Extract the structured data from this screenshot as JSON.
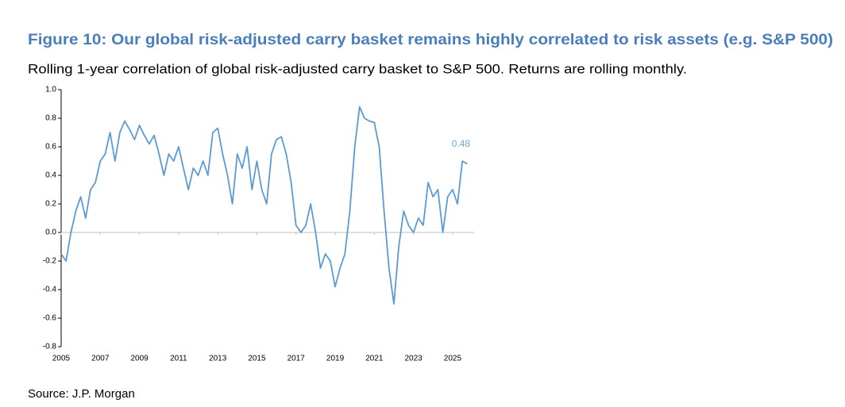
{
  "chart_data": {
    "type": "line",
    "title": "Figure 10: Our global risk-adjusted carry basket remains highly correlated to risk assets (e.g. S&P 500)",
    "subtitle": "Rolling 1-year correlation of global risk-adjusted carry basket to S&P 500. Returns are rolling monthly.",
    "source": "Source: J.P. Morgan",
    "x": [
      2005.0,
      2005.25,
      2005.5,
      2005.75,
      2006.0,
      2006.25,
      2006.5,
      2006.75,
      2007.0,
      2007.25,
      2007.5,
      2007.75,
      2008.0,
      2008.25,
      2008.5,
      2008.75,
      2009.0,
      2009.25,
      2009.5,
      2009.75,
      2010.0,
      2010.25,
      2010.5,
      2010.75,
      2011.0,
      2011.25,
      2011.5,
      2011.75,
      2012.0,
      2012.25,
      2012.5,
      2012.75,
      2013.0,
      2013.25,
      2013.5,
      2013.75,
      2014.0,
      2014.25,
      2014.5,
      2014.75,
      2015.0,
      2015.25,
      2015.5,
      2015.75,
      2016.0,
      2016.25,
      2016.5,
      2016.75,
      2017.0,
      2017.25,
      2017.5,
      2017.75,
      2018.0,
      2018.25,
      2018.5,
      2018.75,
      2019.0,
      2019.25,
      2019.5,
      2019.75,
      2020.0,
      2020.25,
      2020.5,
      2020.75,
      2021.0,
      2021.25,
      2021.5,
      2021.75,
      2022.0,
      2022.25,
      2022.5,
      2022.75,
      2023.0,
      2023.25,
      2023.5,
      2023.75,
      2024.0,
      2024.25,
      2024.5,
      2024.75,
      2025.0,
      2025.25,
      2025.5,
      2025.75
    ],
    "series": [
      {
        "color": "#5b9bd5",
        "values": [
          -0.15,
          -0.2,
          0.0,
          0.15,
          0.25,
          0.1,
          0.3,
          0.35,
          0.5,
          0.55,
          0.7,
          0.5,
          0.7,
          0.78,
          0.72,
          0.65,
          0.75,
          0.68,
          0.62,
          0.68,
          0.55,
          0.4,
          0.55,
          0.5,
          0.6,
          0.45,
          0.3,
          0.45,
          0.4,
          0.5,
          0.4,
          0.7,
          0.73,
          0.55,
          0.4,
          0.2,
          0.55,
          0.45,
          0.6,
          0.3,
          0.5,
          0.3,
          0.2,
          0.55,
          0.65,
          0.67,
          0.55,
          0.35,
          0.05,
          0.0,
          0.05,
          0.2,
          0.0,
          -0.25,
          -0.15,
          -0.2,
          -0.38,
          -0.25,
          -0.15,
          0.15,
          0.6,
          0.88,
          0.8,
          0.78,
          0.77,
          0.6,
          0.15,
          -0.25,
          -0.5,
          -0.1,
          0.15,
          0.05,
          0.0,
          0.1,
          0.05,
          0.35,
          0.25,
          0.3,
          0.0,
          0.25,
          0.3,
          0.2,
          0.5,
          0.48
        ]
      }
    ],
    "end_label": "0.48",
    "end_label_color": "#6fa8dc",
    "xlim": [
      2005,
      2026.1
    ],
    "xticks": [
      2005,
      2007,
      2009,
      2011,
      2013,
      2015,
      2017,
      2019,
      2021,
      2023,
      2025
    ],
    "ylim": [
      -0.8,
      1.0
    ],
    "yticks": [
      {
        "value": 1,
        "label": "1.0"
      },
      0.8,
      0.6,
      0.4,
      0.2,
      {
        "value": 0,
        "label": "0.0"
      },
      -0.2,
      -0.4,
      -0.6,
      -0.8
    ],
    "zero_line": true
  }
}
